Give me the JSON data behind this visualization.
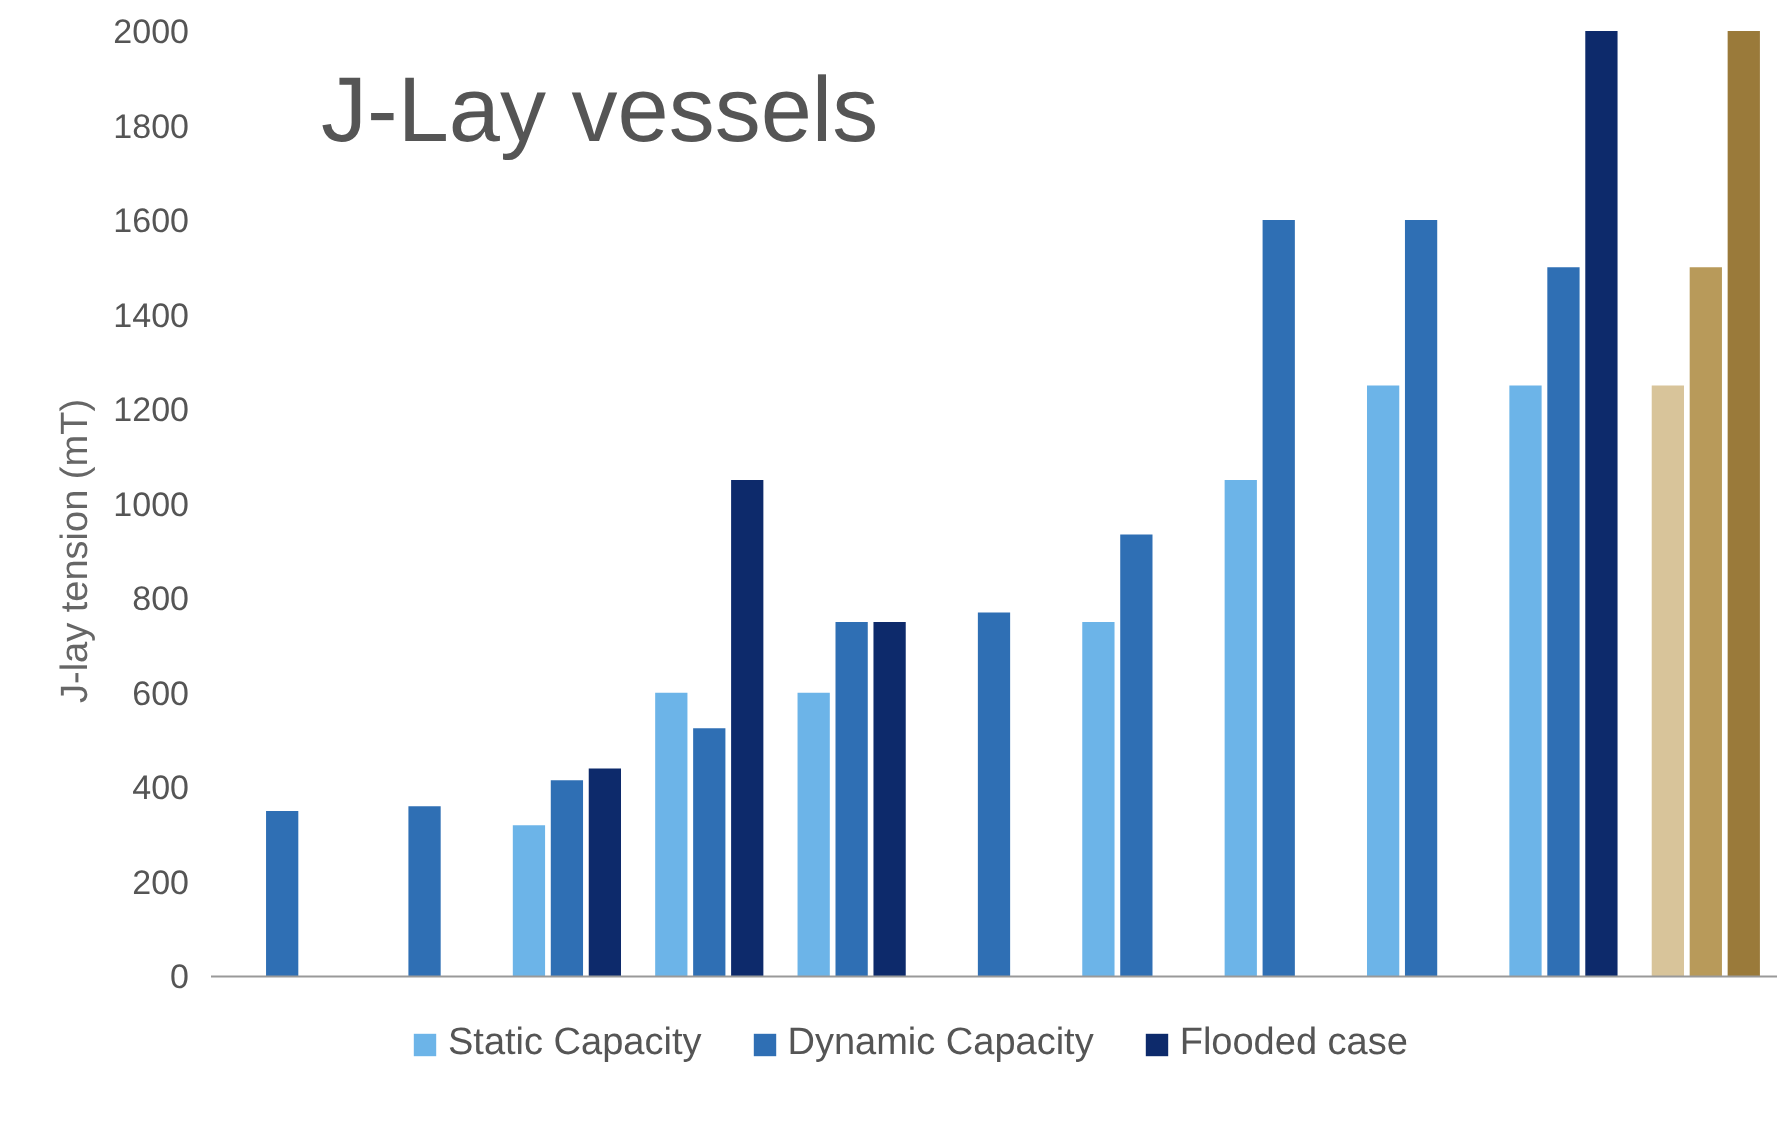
{
  "chart_data": {
    "type": "bar",
    "title": "J-Lay vessels",
    "ylabel": "J-lay tension (mT)",
    "categories": [
      null,
      null,
      null,
      null,
      null,
      null,
      null,
      null,
      null,
      null,
      null
    ],
    "series": [
      {
        "name": "Static Capacity",
        "color": "#6cb4e8",
        "values": [
          null,
          null,
          320,
          600,
          600,
          null,
          750,
          1050,
          1250,
          1250,
          1250
        ],
        "colors": [
          "#6cb4e8",
          "#6cb4e8",
          "#6cb4e8",
          "#6cb4e8",
          "#6cb4e8",
          "#6cb4e8",
          "#6cb4e8",
          "#6cb4e8",
          "#6cb4e8",
          "#6cb4e8",
          "#d8c49a"
        ]
      },
      {
        "name": "Dynamic Capacity",
        "color": "#2f6fb4",
        "values": [
          350,
          360,
          415,
          525,
          750,
          770,
          935,
          1600,
          1600,
          1500,
          1500
        ],
        "colors": [
          "#2f6fb4",
          "#2f6fb4",
          "#2f6fb4",
          "#2f6fb4",
          "#2f6fb4",
          "#2f6fb4",
          "#2f6fb4",
          "#2f6fb4",
          "#2f6fb4",
          "#2f6fb4",
          "#b89a5a"
        ]
      },
      {
        "name": "Flooded case",
        "color": "#0d2a6b",
        "values": [
          null,
          null,
          440,
          1050,
          750,
          null,
          null,
          null,
          null,
          2000,
          2000
        ],
        "colors": [
          "#0d2a6b",
          "#0d2a6b",
          "#0d2a6b",
          "#0d2a6b",
          "#0d2a6b",
          "#0d2a6b",
          "#0d2a6b",
          "#0d2a6b",
          "#0d2a6b",
          "#0d2a6b",
          "#9a7a3a"
        ]
      }
    ],
    "ylim": [
      0,
      2000
    ],
    "yticks": [
      0,
      200,
      400,
      600,
      800,
      1000,
      1200,
      1400,
      1600,
      1800,
      2000
    ],
    "grid": false,
    "legend": "bottom"
  }
}
